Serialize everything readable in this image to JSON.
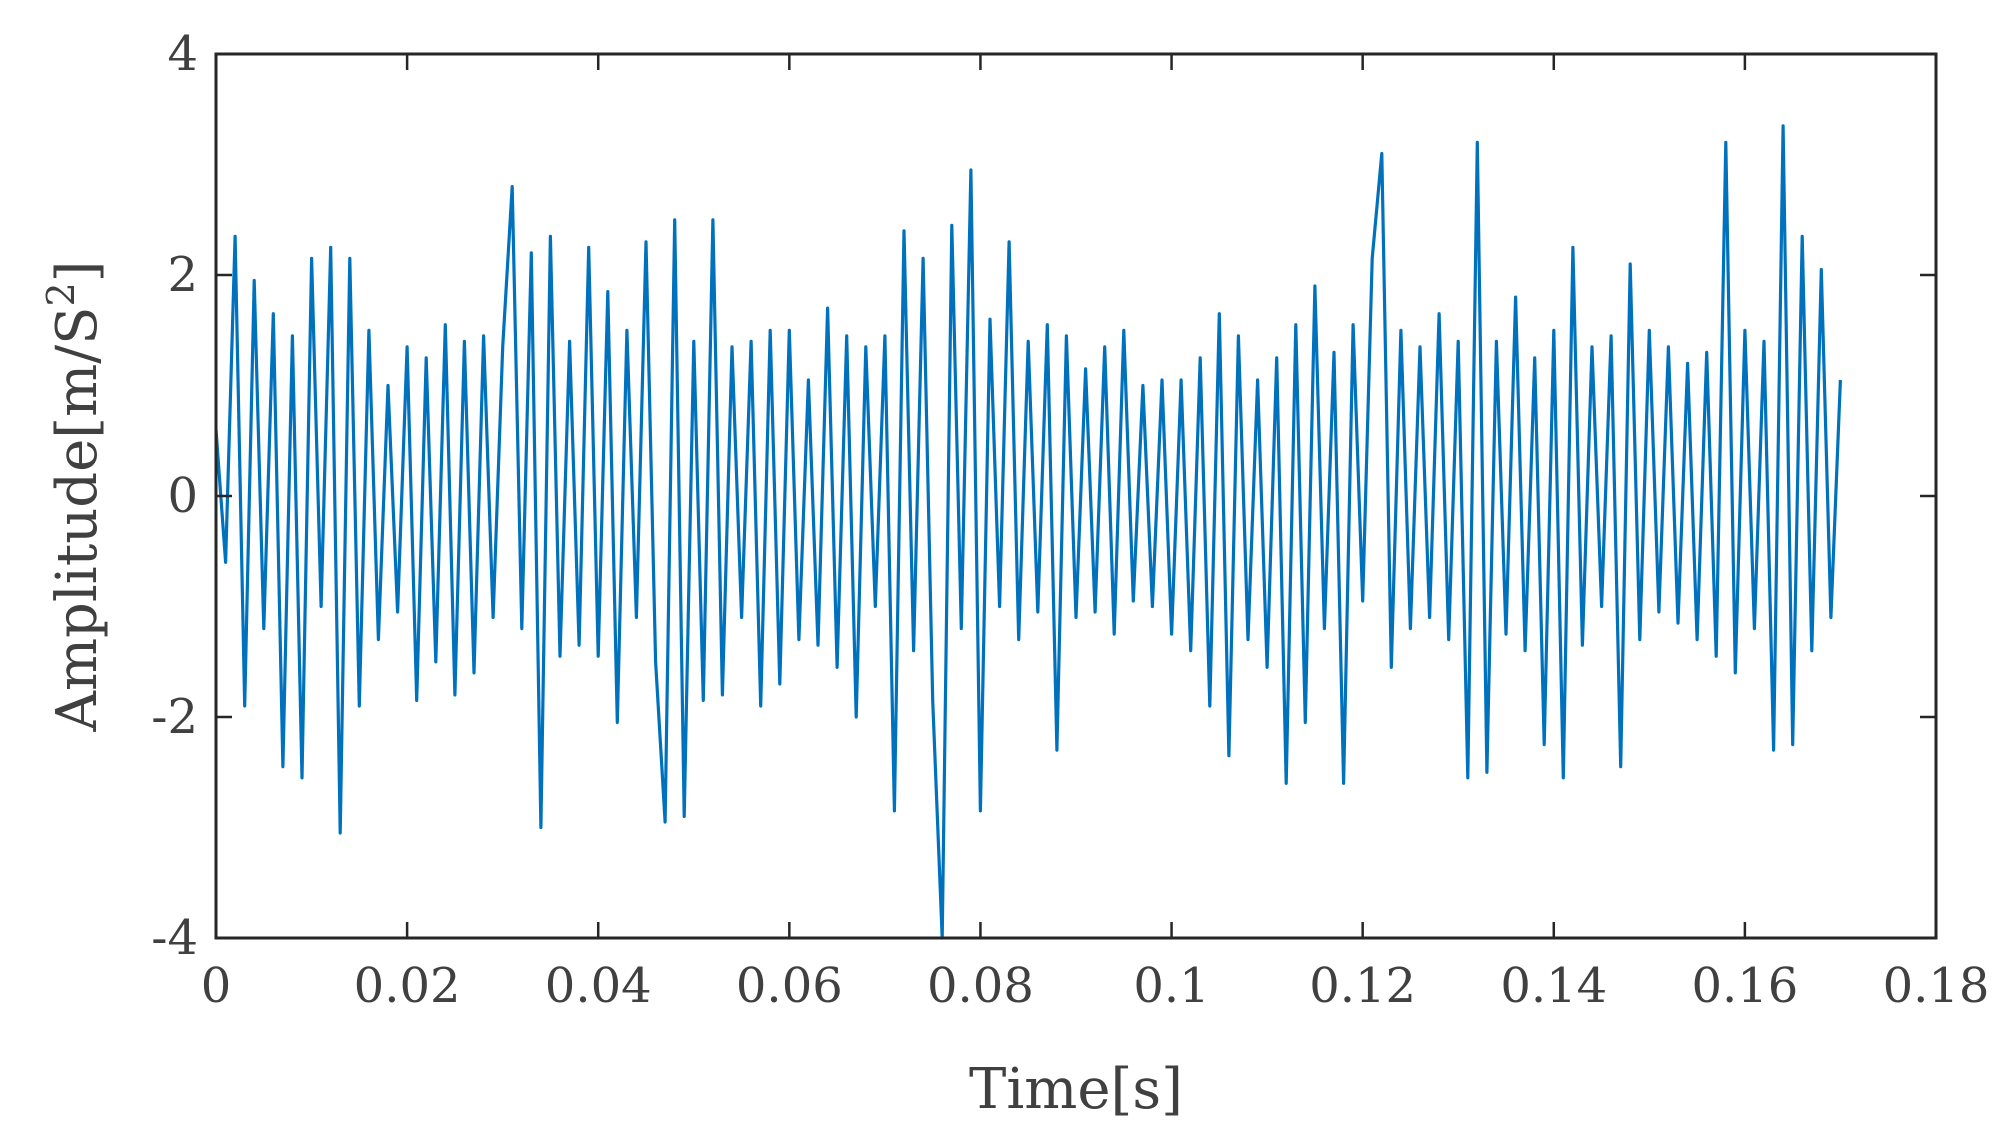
{
  "chart_data": {
    "type": "line",
    "title": "",
    "xlabel": "Time[s]",
    "ylabel_main": "Amplitude[m/S",
    "ylabel_sup": "2",
    "ylabel_close": "]",
    "xlim": [
      0,
      0.18
    ],
    "ylim": [
      -4,
      4
    ],
    "x_ticks": [
      0,
      0.02,
      0.04,
      0.06,
      0.08,
      0.1,
      0.12,
      0.14,
      0.16,
      0.18
    ],
    "x_tick_labels": [
      "0",
      "0.02",
      "0.04",
      "0.06",
      "0.08",
      "0.1",
      "0.12",
      "0.14",
      "0.16",
      "0.18"
    ],
    "y_ticks": [
      -4,
      -2,
      0,
      2,
      4
    ],
    "y_tick_labels": [
      "-4",
      "-2",
      "0",
      "2",
      "4"
    ],
    "grid": false,
    "legend": "none",
    "colors": {
      "series": "#0072BD",
      "axis": "#262626",
      "text": "#404040"
    },
    "series": [
      {
        "x": [
          0,
          0.001,
          0.002,
          0.003,
          0.004,
          0.005,
          0.006,
          0.007,
          0.008,
          0.009,
          0.01,
          0.011,
          0.012,
          0.013,
          0.014,
          0.015,
          0.016,
          0.017,
          0.018,
          0.019,
          0.02,
          0.021,
          0.022,
          0.023,
          0.024,
          0.025,
          0.026,
          0.027,
          0.028,
          0.029,
          0.03,
          0.031,
          0.032,
          0.033,
          0.034,
          0.035,
          0.036,
          0.037,
          0.038,
          0.039,
          0.04,
          0.041,
          0.042,
          0.043,
          0.044,
          0.045,
          0.046,
          0.047,
          0.048,
          0.049,
          0.05,
          0.051,
          0.052,
          0.053,
          0.054,
          0.055,
          0.056,
          0.057,
          0.058,
          0.059,
          0.06,
          0.061,
          0.062,
          0.063,
          0.064,
          0.065,
          0.066,
          0.067,
          0.068,
          0.069,
          0.07,
          0.071,
          0.072,
          0.073,
          0.074,
          0.075,
          0.076,
          0.077,
          0.078,
          0.079,
          0.08,
          0.081,
          0.082,
          0.083,
          0.084,
          0.085,
          0.086,
          0.087,
          0.088,
          0.089,
          0.09,
          0.091,
          0.092,
          0.093,
          0.094,
          0.095,
          0.096,
          0.097,
          0.098,
          0.099,
          0.1,
          0.101,
          0.102,
          0.103,
          0.104,
          0.105,
          0.106,
          0.107,
          0.108,
          0.109,
          0.11,
          0.111,
          0.112,
          0.113,
          0.114,
          0.115,
          0.116,
          0.117,
          0.118,
          0.119,
          0.12,
          0.121,
          0.122,
          0.123,
          0.124,
          0.125,
          0.126,
          0.127,
          0.128,
          0.129,
          0.13,
          0.131,
          0.132,
          0.133,
          0.134,
          0.135,
          0.136,
          0.137,
          0.138,
          0.139,
          0.14,
          0.141,
          0.142,
          0.143,
          0.144,
          0.145,
          0.146,
          0.147,
          0.148,
          0.149,
          0.15,
          0.151,
          0.152,
          0.153,
          0.154,
          0.155,
          0.156,
          0.157,
          0.158,
          0.159,
          0.16,
          0.161,
          0.162,
          0.163,
          0.164,
          0.165,
          0.166,
          0.167,
          0.168,
          0.169,
          0.17
        ],
        "values": [
          0.6,
          -0.6,
          2.35,
          -1.9,
          1.95,
          -1.2,
          1.65,
          -2.45,
          1.45,
          -2.55,
          2.15,
          -1.0,
          2.25,
          -3.05,
          2.15,
          -1.9,
          1.5,
          -1.3,
          1.0,
          -1.05,
          1.35,
          -1.85,
          1.25,
          -1.5,
          1.55,
          -1.8,
          1.4,
          -1.6,
          1.45,
          -1.1,
          1.35,
          2.8,
          -1.2,
          2.2,
          -3.0,
          2.35,
          -1.45,
          1.4,
          -1.35,
          2.25,
          -1.45,
          1.85,
          -2.05,
          1.5,
          -1.1,
          2.3,
          -1.5,
          -2.95,
          2.5,
          -2.9,
          1.4,
          -1.85,
          2.5,
          -1.8,
          1.35,
          -1.1,
          1.4,
          -1.9,
          1.5,
          -1.7,
          1.5,
          -1.3,
          1.05,
          -1.35,
          1.7,
          -1.55,
          1.45,
          -2.0,
          1.35,
          -1.0,
          1.45,
          -2.85,
          2.4,
          -1.4,
          2.15,
          -1.85,
          -4.0,
          2.45,
          -1.2,
          2.95,
          -2.85,
          1.6,
          -1.0,
          2.3,
          -1.3,
          1.4,
          -1.05,
          1.55,
          -2.3,
          1.45,
          -1.1,
          1.15,
          -1.05,
          1.35,
          -1.25,
          1.5,
          -0.95,
          1.0,
          -1.0,
          1.05,
          -1.25,
          1.05,
          -1.4,
          1.25,
          -1.9,
          1.65,
          -2.35,
          1.45,
          -1.3,
          1.05,
          -1.55,
          1.25,
          -2.6,
          1.55,
          -2.05,
          1.9,
          -1.2,
          1.3,
          -2.6,
          1.55,
          -0.95,
          2.15,
          3.1,
          -1.55,
          1.5,
          -1.2,
          1.35,
          -1.1,
          1.65,
          -1.3,
          1.4,
          -2.55,
          3.2,
          -2.5,
          1.4,
          -1.25,
          1.8,
          -1.4,
          1.25,
          -2.25,
          1.5,
          -2.55,
          2.25,
          -1.35,
          1.35,
          -1.0,
          1.45,
          -2.45,
          2.1,
          -1.3,
          1.5,
          -1.05,
          1.35,
          -1.15,
          1.2,
          -1.3,
          1.3,
          -1.45,
          3.2,
          -1.6,
          1.5,
          -1.2,
          1.4,
          -2.3,
          3.35,
          -2.25,
          2.35,
          -1.4,
          2.05,
          -1.1,
          1.05
        ]
      }
    ]
  }
}
